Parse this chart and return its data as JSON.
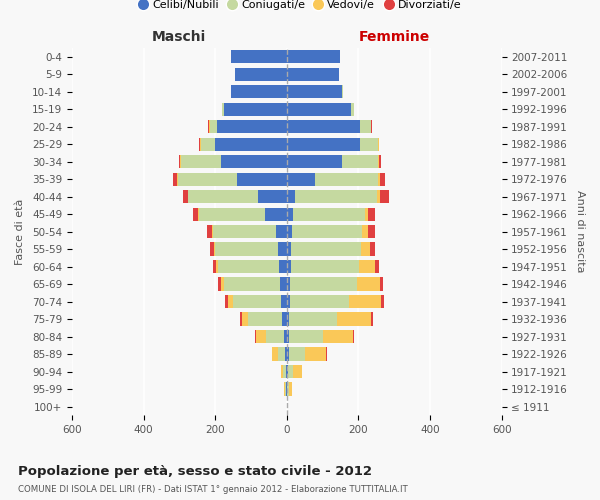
{
  "age_groups": [
    "100+",
    "95-99",
    "90-94",
    "85-89",
    "80-84",
    "75-79",
    "70-74",
    "65-69",
    "60-64",
    "55-59",
    "50-54",
    "45-49",
    "40-44",
    "35-39",
    "30-34",
    "25-29",
    "20-24",
    "15-19",
    "10-14",
    "5-9",
    "0-4"
  ],
  "birth_years": [
    "≤ 1911",
    "1912-1916",
    "1917-1921",
    "1922-1926",
    "1927-1931",
    "1932-1936",
    "1937-1941",
    "1942-1946",
    "1947-1951",
    "1952-1956",
    "1957-1961",
    "1962-1966",
    "1967-1971",
    "1972-1976",
    "1977-1981",
    "1982-1986",
    "1987-1991",
    "1992-1996",
    "1997-2001",
    "2002-2006",
    "2007-2011"
  ],
  "colors": {
    "celibi": "#4472C4",
    "coniugati": "#C5D9A0",
    "vedovi": "#FAC858",
    "divorziati": "#E04040"
  },
  "maschi": {
    "celibi": [
      0,
      2,
      3,
      5,
      8,
      12,
      15,
      20,
      22,
      25,
      30,
      60,
      80,
      140,
      185,
      200,
      195,
      175,
      155,
      145,
      155
    ],
    "coniugati": [
      0,
      3,
      8,
      20,
      50,
      95,
      135,
      155,
      170,
      175,
      175,
      185,
      195,
      165,
      110,
      40,
      20,
      5,
      2,
      0,
      0
    ],
    "vedovi": [
      0,
      2,
      5,
      15,
      28,
      18,
      15,
      8,
      5,
      3,
      3,
      2,
      2,
      2,
      2,
      2,
      2,
      0,
      0,
      0,
      0
    ],
    "divorziati": [
      0,
      0,
      0,
      2,
      2,
      5,
      8,
      10,
      10,
      12,
      15,
      15,
      12,
      10,
      5,
      3,
      2,
      0,
      0,
      0,
      0
    ]
  },
  "femmine": {
    "celibi": [
      0,
      2,
      3,
      5,
      5,
      5,
      8,
      10,
      12,
      12,
      15,
      18,
      22,
      80,
      155,
      205,
      205,
      180,
      155,
      145,
      150
    ],
    "coniugati": [
      0,
      5,
      15,
      45,
      95,
      135,
      165,
      185,
      190,
      195,
      195,
      200,
      230,
      175,
      100,
      50,
      30,
      8,
      3,
      0,
      0
    ],
    "vedovi": [
      0,
      8,
      25,
      60,
      85,
      95,
      90,
      65,
      45,
      25,
      18,
      10,
      8,
      5,
      3,
      2,
      1,
      0,
      0,
      0,
      0
    ],
    "divorziati": [
      0,
      0,
      0,
      2,
      3,
      5,
      8,
      10,
      12,
      15,
      18,
      18,
      25,
      15,
      5,
      2,
      1,
      0,
      0,
      0,
      0
    ]
  },
  "title": "Popolazione per età, sesso e stato civile - 2012",
  "subtitle": "COMUNE DI ISOLA DEL LIRI (FR) - Dati ISTAT 1° gennaio 2012 - Elaborazione TUTTITALIA.IT",
  "ylabel_left": "Fasce di età",
  "ylabel_right": "Anni di nascita",
  "xlabel_maschi": "Maschi",
  "xlabel_femmine": "Femmine",
  "xlim": 600,
  "legend_labels": [
    "Celibi/Nubili",
    "Coniugati/e",
    "Vedovi/e",
    "Divorziati/e"
  ],
  "background_color": "#F8F8F8"
}
